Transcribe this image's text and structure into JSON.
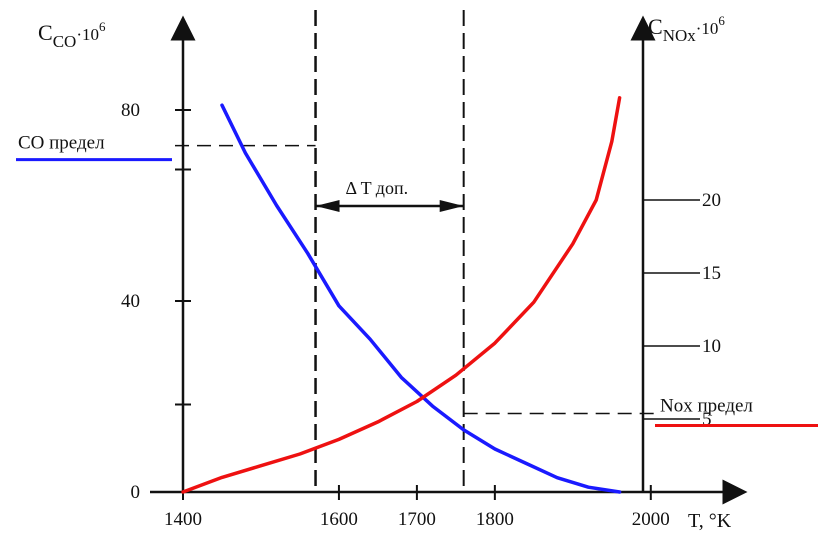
{
  "chart_data": {
    "type": "line",
    "left_axis": {
      "label_main": "C",
      "label_sub": "CO",
      "label_factor": "·10",
      "label_exp": "6",
      "ticks": [
        0,
        40,
        80
      ],
      "range": [
        0,
        100
      ]
    },
    "right_axis": {
      "label_main": "C",
      "label_sub": "NOx",
      "label_factor": "·10",
      "label_exp": "6",
      "ticks": [
        5,
        10,
        15,
        20
      ],
      "range": [
        0,
        28
      ]
    },
    "x_axis": {
      "label": "T, °K",
      "ticks": [
        1400,
        1600,
        1700,
        1800,
        2000
      ],
      "range": [
        1400,
        2050
      ]
    },
    "series": [
      {
        "name": "CO",
        "axis": "left",
        "color": "#1a1aff",
        "points": [
          [
            1450,
            81
          ],
          [
            1480,
            71
          ],
          [
            1520,
            60
          ],
          [
            1560,
            50
          ],
          [
            1600,
            39
          ],
          [
            1640,
            32
          ],
          [
            1680,
            24
          ],
          [
            1720,
            18
          ],
          [
            1760,
            13
          ],
          [
            1800,
            9
          ],
          [
            1840,
            6
          ],
          [
            1880,
            3
          ],
          [
            1920,
            1
          ],
          [
            1960,
            0
          ]
        ]
      },
      {
        "name": "NOx",
        "axis": "right",
        "color": "#ee1111",
        "points": [
          [
            1400,
            0
          ],
          [
            1450,
            1
          ],
          [
            1500,
            1.8
          ],
          [
            1550,
            2.6
          ],
          [
            1600,
            3.6
          ],
          [
            1650,
            4.8
          ],
          [
            1700,
            6.2
          ],
          [
            1750,
            8
          ],
          [
            1800,
            10.2
          ],
          [
            1850,
            13
          ],
          [
            1900,
            17
          ],
          [
            1930,
            20
          ],
          [
            1950,
            24
          ],
          [
            1960,
            27
          ]
        ]
      }
    ],
    "annotations": {
      "co_limit_label": "CO предел",
      "co_limit_value": 65,
      "nox_limit_label": "Nox предел",
      "nox_limit_value": 6.2,
      "delta_label": "Δ T доп.",
      "delta_from": 1570,
      "delta_to": 1760
    },
    "grid": false
  }
}
